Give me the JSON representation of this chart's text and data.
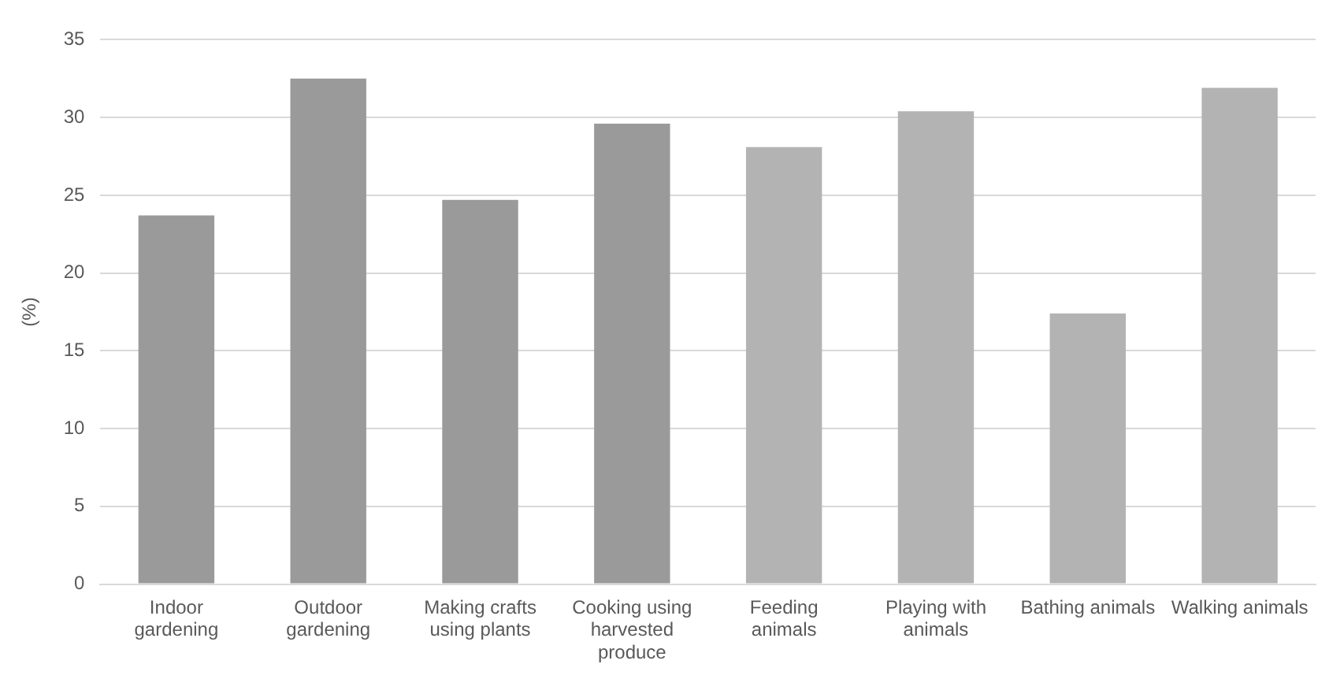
{
  "chart_data": {
    "type": "bar",
    "ylabel": "(%)",
    "categories": [
      "Indoor gardening",
      "Outdoor gardening",
      "Making crafts using plants",
      "Cooking using harvested produce",
      "Feeding animals",
      "Playing with animals",
      "Bathing animals",
      "Walking animals"
    ],
    "values": [
      23.7,
      32.5,
      24.7,
      29.6,
      28.1,
      30.4,
      17.4,
      31.9
    ],
    "colors": [
      "#9a9a9a",
      "#9a9a9a",
      "#9a9a9a",
      "#9a9a9a",
      "#b3b3b3",
      "#b3b3b3",
      "#b3b3b3",
      "#b3b3b3"
    ],
    "ylim": [
      0,
      35
    ],
    "yticks": [
      0,
      5,
      10,
      15,
      20,
      25,
      30,
      35
    ],
    "grid": "y",
    "legend": false
  }
}
